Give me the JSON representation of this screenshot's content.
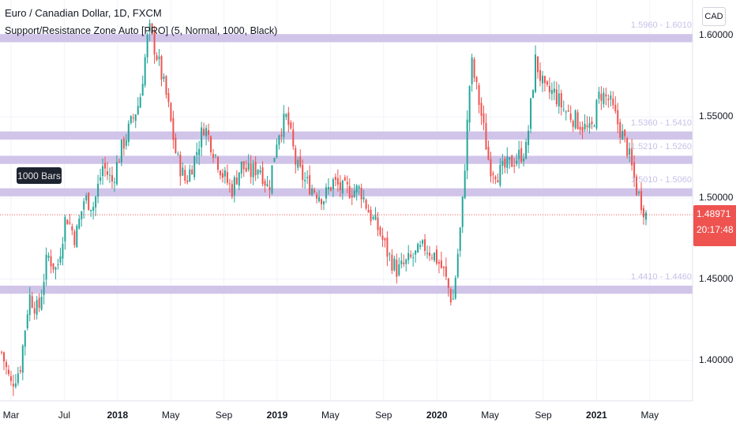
{
  "header": {
    "title": "Euro / Canadian Dollar, 1D, FXCM",
    "indicator": "Support/Resistance Zone Auto [PRO] (5, Normal, 1000, Black)"
  },
  "currency_button": "CAD",
  "bars_badge": "1000 Bars",
  "price_label": {
    "price": "1.48971",
    "countdown": "20:17:48"
  },
  "colors": {
    "zone": "#d1c4e9",
    "up_candle": "#26a69a",
    "down_candle": "#ef5350",
    "last_price": "#ef5350"
  },
  "chart_data": {
    "type": "candlestick",
    "ylim": [
      1.375,
      1.622
    ],
    "y_ticks": [
      "1.60000",
      "1.55000",
      "1.50000",
      "1.45000",
      "1.40000"
    ],
    "x_ticks": [
      {
        "label": "Mar",
        "bold": false
      },
      {
        "label": "Jul",
        "bold": false
      },
      {
        "label": "2018",
        "bold": true
      },
      {
        "label": "May",
        "bold": false
      },
      {
        "label": "Sep",
        "bold": false
      },
      {
        "label": "2019",
        "bold": true
      },
      {
        "label": "May",
        "bold": false
      },
      {
        "label": "Sep",
        "bold": false
      },
      {
        "label": "2020",
        "bold": true
      },
      {
        "label": "May",
        "bold": false
      },
      {
        "label": "Sep",
        "bold": false
      },
      {
        "label": "2021",
        "bold": true
      },
      {
        "label": "May",
        "bold": false
      }
    ],
    "zones": [
      {
        "low": 1.596,
        "high": 1.601,
        "label": "1.5960 - 1.6010"
      },
      {
        "low": 1.536,
        "high": 1.541,
        "label": "1.5360 - 1.5410"
      },
      {
        "low": 1.521,
        "high": 1.526,
        "label": "1.5210 - 1.5260"
      },
      {
        "low": 1.501,
        "high": 1.506,
        "label": "1.5010 - 1.5060"
      },
      {
        "low": 1.441,
        "high": 1.446,
        "label": "1.4410 - 1.4460"
      }
    ],
    "last_price": 1.48971,
    "price_path": [
      [
        0,
        1.405
      ],
      [
        1,
        1.385
      ],
      [
        2,
        1.395
      ],
      [
        3,
        1.44
      ],
      [
        4,
        1.43
      ],
      [
        5,
        1.465
      ],
      [
        6,
        1.455
      ],
      [
        7,
        1.49
      ],
      [
        8,
        1.475
      ],
      [
        9,
        1.5
      ],
      [
        10,
        1.495
      ],
      [
        11,
        1.52
      ],
      [
        12,
        1.51
      ],
      [
        13,
        1.53
      ],
      [
        14,
        1.545
      ],
      [
        15,
        1.56
      ],
      [
        16,
        1.605
      ],
      [
        17,
        1.585
      ],
      [
        18,
        1.56
      ],
      [
        19,
        1.525
      ],
      [
        20,
        1.51
      ],
      [
        21,
        1.525
      ],
      [
        22,
        1.545
      ],
      [
        23,
        1.53
      ],
      [
        24,
        1.515
      ],
      [
        25,
        1.505
      ],
      [
        26,
        1.52
      ],
      [
        27,
        1.515
      ],
      [
        28,
        1.52
      ],
      [
        29,
        1.505
      ],
      [
        30,
        1.54
      ],
      [
        31,
        1.55
      ],
      [
        32,
        1.52
      ],
      [
        33,
        1.51
      ],
      [
        34,
        1.505
      ],
      [
        35,
        1.5
      ],
      [
        36,
        1.51
      ],
      [
        37,
        1.505
      ],
      [
        38,
        1.505
      ],
      [
        39,
        1.505
      ],
      [
        40,
        1.49
      ],
      [
        41,
        1.48
      ],
      [
        42,
        1.465
      ],
      [
        43,
        1.455
      ],
      [
        44,
        1.46
      ],
      [
        45,
        1.465
      ],
      [
        46,
        1.47
      ],
      [
        47,
        1.465
      ],
      [
        48,
        1.455
      ],
      [
        49,
        1.435
      ],
      [
        50,
        1.49
      ],
      [
        51,
        1.585
      ],
      [
        52,
        1.555
      ],
      [
        53,
        1.52
      ],
      [
        54,
        1.515
      ],
      [
        55,
        1.52
      ],
      [
        56,
        1.525
      ],
      [
        57,
        1.53
      ],
      [
        58,
        1.585
      ],
      [
        59,
        1.565
      ],
      [
        60,
        1.565
      ],
      [
        61,
        1.555
      ],
      [
        62,
        1.55
      ],
      [
        63,
        1.545
      ],
      [
        64,
        1.54
      ],
      [
        65,
        1.565
      ],
      [
        66,
        1.56
      ],
      [
        67,
        1.545
      ],
      [
        68,
        1.53
      ],
      [
        69,
        1.505
      ],
      [
        70,
        1.49
      ]
    ]
  }
}
